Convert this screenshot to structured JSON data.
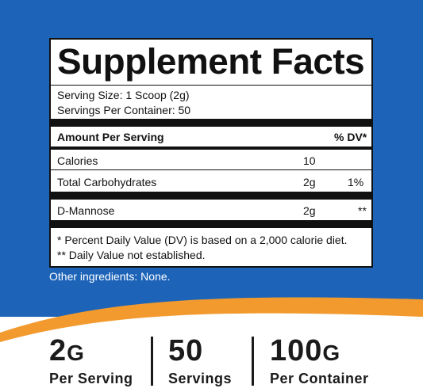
{
  "colors": {
    "background_blue": "#1d64b8",
    "swoosh_orange": "#f29a2e",
    "panel_border": "#111111"
  },
  "panel": {
    "title": "Supplement Facts",
    "serving_size": "Serving Size: 1 Scoop (2g)",
    "servings_per_container": "Servings Per Container: 50",
    "header_left": "Amount Per Serving",
    "header_right": "% DV*",
    "rows": [
      {
        "name": "Calories",
        "amount": "10",
        "dv": ""
      },
      {
        "name": "Total Carbohydrates",
        "amount": "2g",
        "dv": "1%"
      },
      {
        "name": "D-Mannose",
        "amount": "2g",
        "dv": "**"
      }
    ],
    "footnote_1": "* Percent Daily Value (DV) is based on a 2,000 calorie diet.",
    "footnote_2": "** Daily Value not established."
  },
  "other_ingredients": "Other ingredients: None.",
  "stats": [
    {
      "value": "2",
      "unit": "G",
      "label": "Per Serving"
    },
    {
      "value": "50",
      "unit": "",
      "label": "Servings"
    },
    {
      "value": "100",
      "unit": "G",
      "label": "Per Container"
    }
  ]
}
